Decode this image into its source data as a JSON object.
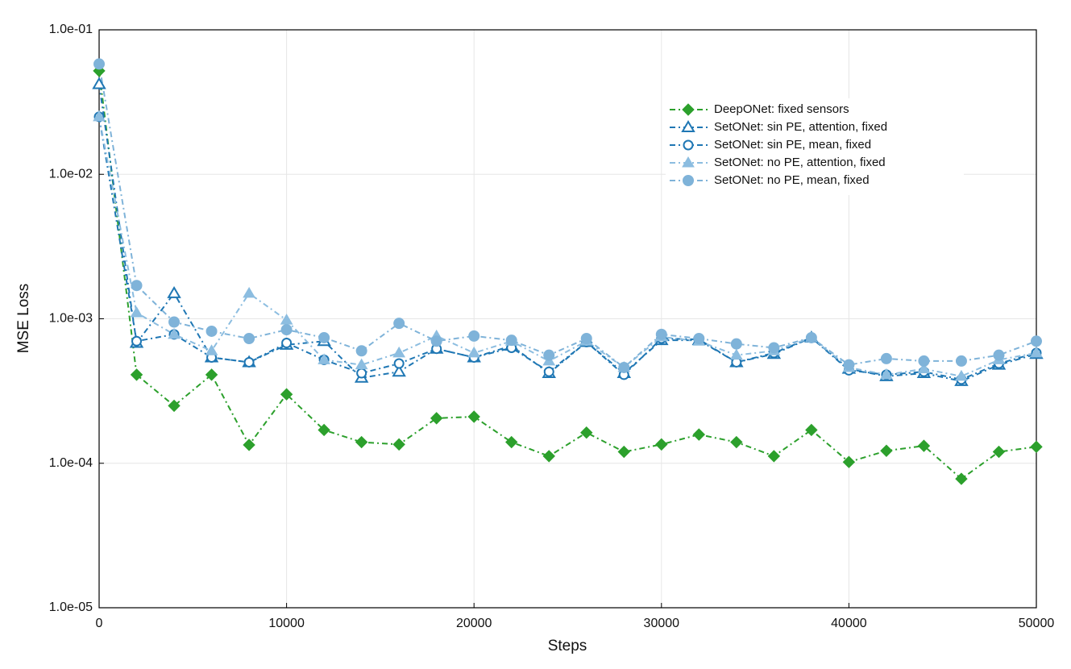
{
  "chart_data": {
    "type": "line",
    "xlabel": "Steps",
    "ylabel": "MSE Loss",
    "log_y": true,
    "grid": true,
    "legend": "upper right",
    "x": [
      0,
      2000,
      4000,
      6000,
      8000,
      10000,
      12000,
      14000,
      16000,
      18000,
      20000,
      22000,
      24000,
      26000,
      28000,
      30000,
      32000,
      34000,
      36000,
      38000,
      40000,
      42000,
      44000,
      46000,
      48000,
      50000
    ],
    "xlim": [
      0,
      50000
    ],
    "xticks": [
      0,
      10000,
      20000,
      30000,
      40000,
      50000
    ],
    "ylim": [
      1e-05,
      0.1
    ],
    "yticks": [
      {
        "value": 1e-05,
        "label": "1.0e-05"
      },
      {
        "value": 0.0001,
        "label": "1.0e-04"
      },
      {
        "value": 0.001,
        "label": "1.0e-03"
      },
      {
        "value": 0.01,
        "label": "1.0e-02"
      },
      {
        "value": 0.1,
        "label": "1.0e-01"
      }
    ],
    "series": [
      {
        "name": "DeepONet: fixed sensors",
        "color": "#2ca02c",
        "marker": "diamond",
        "values": [
          0.052,
          0.00041,
          0.00025,
          0.00041,
          0.000134,
          0.0003,
          0.00017,
          0.00014,
          0.000135,
          0.000205,
          0.00021,
          0.00014,
          0.000112,
          0.000163,
          0.00012,
          0.000135,
          0.000158,
          0.00014,
          0.000112,
          0.00017,
          0.000102,
          0.000122,
          0.000132,
          7.8e-05,
          0.00012,
          0.00013
        ]
      },
      {
        "name": "SetONet: sin PE, attention, fixed",
        "color": "#1f77b4",
        "marker": "triangle-open",
        "values": [
          0.042,
          0.00068,
          0.0015,
          0.00054,
          0.0005,
          0.00066,
          0.0007,
          0.00039,
          0.00043,
          0.00062,
          0.00054,
          0.00065,
          0.00042,
          0.00069,
          0.00042,
          0.00071,
          0.00071,
          0.0005,
          0.00057,
          0.00074,
          0.00045,
          0.0004,
          0.00042,
          0.00037,
          0.00048,
          0.00057
        ]
      },
      {
        "name": "SetONet: sin PE, mean, fixed",
        "color": "#1f77b4",
        "marker": "circle-open",
        "values": [
          0.025,
          0.0007,
          0.00078,
          0.00054,
          0.0005,
          0.00068,
          0.00052,
          0.00042,
          0.00049,
          0.00062,
          0.00054,
          0.00063,
          0.00043,
          0.00069,
          0.00041,
          0.00073,
          0.00072,
          0.0005,
          0.00058,
          0.00074,
          0.00044,
          0.00041,
          0.00043,
          0.00038,
          0.00049,
          0.00058
        ]
      },
      {
        "name": "SetONet: no PE, attention, fixed",
        "color": "#8cbde0",
        "marker": "triangle",
        "values": [
          0.025,
          0.0011,
          0.00078,
          0.0006,
          0.0015,
          0.00098,
          0.00052,
          0.00048,
          0.00058,
          0.00076,
          0.00058,
          0.0007,
          0.00051,
          0.0007,
          0.00046,
          0.00075,
          0.0007,
          0.00056,
          0.0006,
          0.00074,
          0.00046,
          0.00041,
          0.00045,
          0.0004,
          0.00052,
          0.00058
        ]
      },
      {
        "name": "SetONet: no PE, mean, fixed",
        "color": "#7fb3d9",
        "marker": "circle",
        "values": [
          0.058,
          0.0017,
          0.00095,
          0.00082,
          0.00073,
          0.00084,
          0.00074,
          0.0006,
          0.00093,
          0.0007,
          0.00076,
          0.00071,
          0.00056,
          0.00073,
          0.00046,
          0.00078,
          0.00073,
          0.00067,
          0.00063,
          0.00074,
          0.00048,
          0.00053,
          0.00051,
          0.00051,
          0.00056,
          0.0007
        ]
      }
    ]
  }
}
